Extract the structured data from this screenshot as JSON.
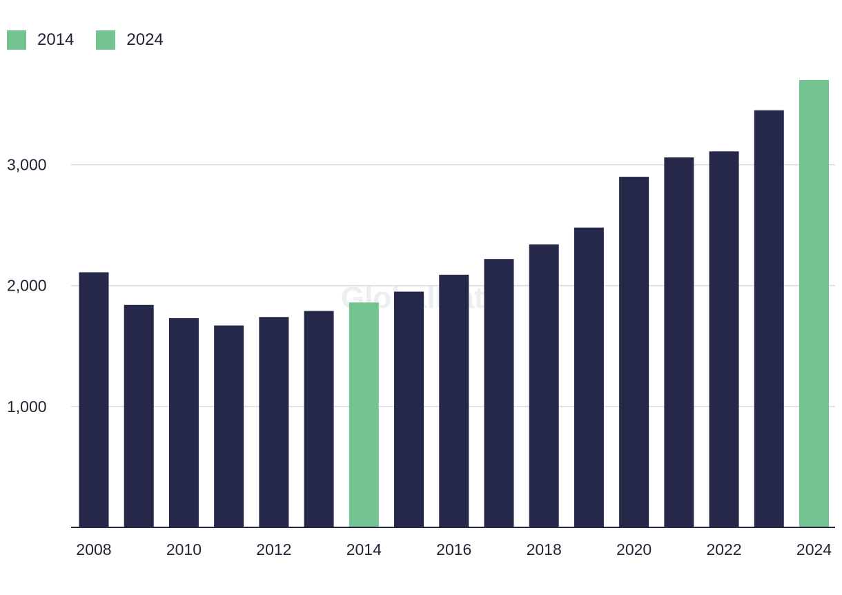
{
  "legend": [
    {
      "label": "2014",
      "color": "#73c490"
    },
    {
      "label": "2024",
      "color": "#73c490"
    }
  ],
  "watermark": "GlobalData",
  "colors": {
    "bar": "#26284a",
    "highlight": "#73c490",
    "grid": "#d9d9d9",
    "axis": "#26284a"
  },
  "chart_data": {
    "type": "bar",
    "title": "",
    "xlabel": "",
    "ylabel": "",
    "categories": [
      "2008",
      "2009",
      "2010",
      "2011",
      "2012",
      "2013",
      "2014",
      "2015",
      "2016",
      "2017",
      "2018",
      "2019",
      "2020",
      "2021",
      "2022",
      "2023",
      "2024"
    ],
    "values": [
      2110,
      1840,
      1730,
      1670,
      1740,
      1790,
      1860,
      1950,
      2090,
      2220,
      2340,
      2480,
      2900,
      3060,
      3110,
      3450,
      3700
    ],
    "highlighted": [
      "2014",
      "2024"
    ],
    "x_tick_labels": [
      "2008",
      "2010",
      "2012",
      "2014",
      "2016",
      "2018",
      "2020",
      "2022",
      "2024"
    ],
    "y_ticks": [
      1000,
      2000,
      3000
    ],
    "y_tick_labels": [
      "1,000",
      "2,000",
      "3,000"
    ],
    "ylim": [
      0,
      3700
    ],
    "grid": true,
    "legend_position": "top-left"
  }
}
